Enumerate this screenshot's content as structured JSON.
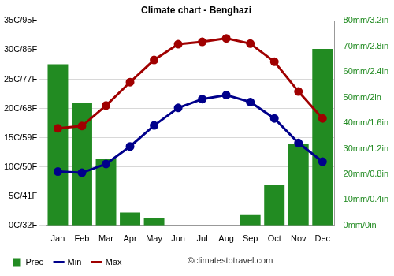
{
  "chart_data": {
    "type": "bar",
    "title": "Climate chart - Benghazi",
    "categories": [
      "Jan",
      "Feb",
      "Mar",
      "Apr",
      "May",
      "Jun",
      "Jul",
      "Aug",
      "Sep",
      "Oct",
      "Nov",
      "Dec"
    ],
    "series": [
      {
        "name": "Prec",
        "type": "bar",
        "color": "#228b22",
        "axis": "y2",
        "values": [
          63,
          48,
          26,
          5,
          3,
          0,
          0,
          0,
          4,
          16,
          32,
          69
        ]
      },
      {
        "name": "Min",
        "type": "line",
        "color": "#00008b",
        "marker": "circle",
        "values": [
          9.2,
          9.0,
          10.5,
          13.5,
          17.1,
          20.1,
          21.6,
          22.3,
          21.1,
          18.3,
          14.1,
          10.9
        ]
      },
      {
        "name": "Max",
        "type": "line",
        "color": "#a00000",
        "marker": "circle",
        "values": [
          16.6,
          17.0,
          20.5,
          24.5,
          28.3,
          31.0,
          31.4,
          32.0,
          31.1,
          28.0,
          22.9,
          18.3
        ]
      }
    ],
    "ylim": [
      0,
      35
    ],
    "yticks": [
      {
        "value": 0,
        "label": "0C/32F"
      },
      {
        "value": 5,
        "label": "5C/41F"
      },
      {
        "value": 10,
        "label": "10C/50F"
      },
      {
        "value": 15,
        "label": "15C/59F"
      },
      {
        "value": 20,
        "label": "20C/68F"
      },
      {
        "value": 25,
        "label": "25C/77F"
      },
      {
        "value": 30,
        "label": "30C/86F"
      },
      {
        "value": 35,
        "label": "35C/95F"
      }
    ],
    "y2lim": [
      0,
      80
    ],
    "y2ticks": [
      {
        "value": 0,
        "label": "0mm/0in"
      },
      {
        "value": 10,
        "label": "10mm/0.4in"
      },
      {
        "value": 20,
        "label": "20mm/0.8in"
      },
      {
        "value": 30,
        "label": "30mm/1.2in"
      },
      {
        "value": 40,
        "label": "40mm/1.6in"
      },
      {
        "value": 50,
        "label": "50mm/2in"
      },
      {
        "value": 60,
        "label": "60mm/2.4in"
      },
      {
        "value": 70,
        "label": "70mm/2.8in"
      },
      {
        "value": 80,
        "label": "80mm/3.2in"
      }
    ],
    "grid": true,
    "legend": "lower left",
    "annotations": [
      "©climatestotravel.com"
    ]
  }
}
